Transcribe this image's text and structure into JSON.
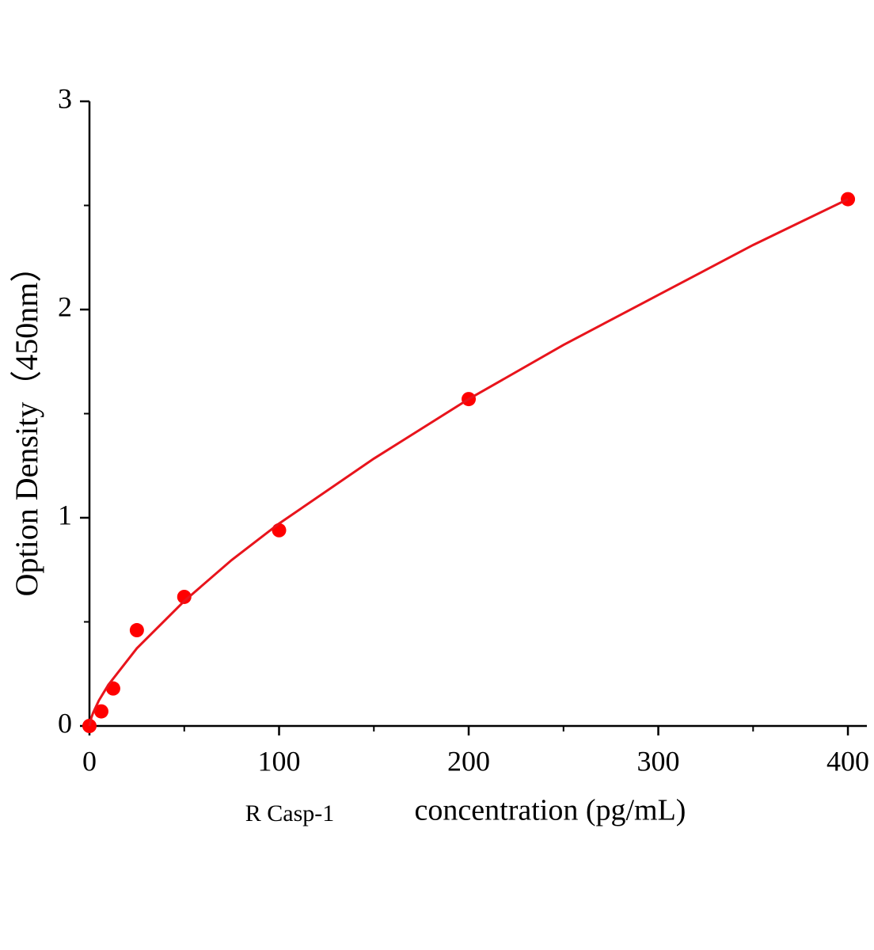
{
  "chart_data": {
    "type": "scatter",
    "ylabel": "Option Density（450nm）",
    "xlabel": [
      "R Casp-1",
      "concentration (pg/mL)"
    ],
    "xlim": [
      0,
      410
    ],
    "ylim": [
      0,
      3
    ],
    "xticks": [
      0,
      100,
      200,
      300,
      400
    ],
    "yticks": [
      0,
      1,
      2,
      3
    ],
    "xminorticks": [
      50,
      150,
      250,
      350
    ],
    "yminorticks": [
      0.5,
      1.5,
      2.5
    ],
    "series": [
      {
        "type": "scatter",
        "color": "#ff0000",
        "x": [
          0,
          6.25,
          12.5,
          25,
          50,
          100,
          200,
          400
        ],
        "values": [
          0,
          0.07,
          0.18,
          0.46,
          0.62,
          0.94,
          1.57,
          2.53
        ]
      },
      {
        "type": "line",
        "color": "#e8141c",
        "x": [
          0,
          1,
          2,
          5,
          10,
          25,
          50,
          75,
          100,
          150,
          200,
          250,
          300,
          350,
          400
        ],
        "values": [
          0,
          0.04,
          0.065,
          0.123,
          0.198,
          0.373,
          0.6,
          0.797,
          0.972,
          1.284,
          1.57,
          1.83,
          2.07,
          2.31,
          2.53
        ]
      }
    ]
  }
}
